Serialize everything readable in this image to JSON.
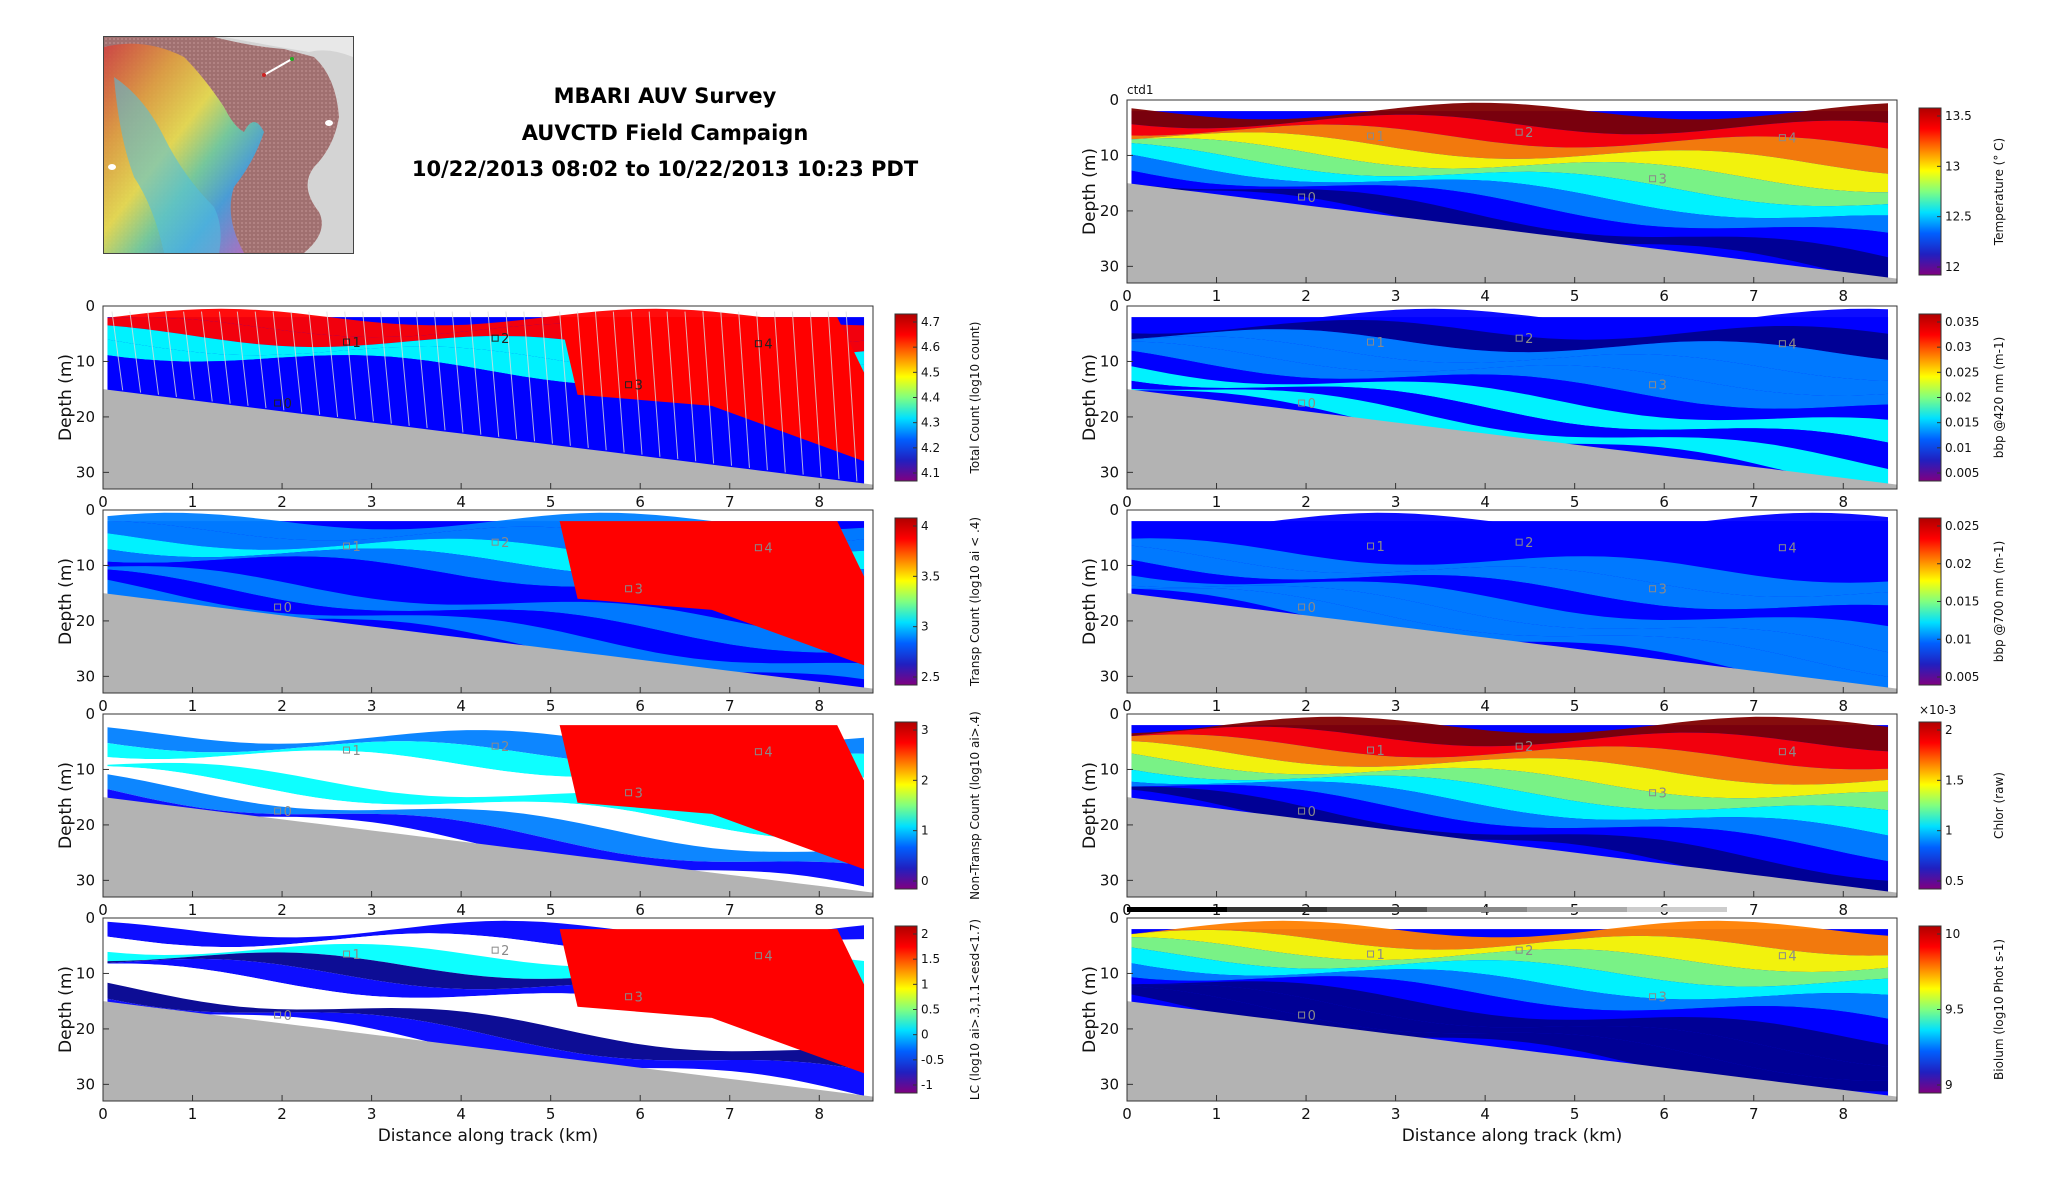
{
  "title": {
    "line1": "MBARI AUV Survey",
    "line2": "AUVCTD Field Campaign",
    "line3": "10/22/2013 08:02 to 10/22/2013 10:23 PDT"
  },
  "colors": {
    "terrain": "#b3b3b3",
    "marker_dark": "#222222",
    "marker_light": "#8a8a8a"
  },
  "markers": [
    {
      "label": "0",
      "x": 1.95,
      "y": 17.5
    },
    {
      "label": "1",
      "x": 2.72,
      "y": 6.5
    },
    {
      "label": "2",
      "x": 4.38,
      "y": 5.8
    },
    {
      "label": "3",
      "x": 5.87,
      "y": 14.2
    },
    {
      "label": "4",
      "x": 7.32,
      "y": 6.8
    }
  ],
  "ctd_tag": "ctd1",
  "chart_data": [
    {
      "type": "heatmap",
      "id": "total-count",
      "colorbar": "Total Count (log10 count)",
      "ticks": [
        "4.1",
        "4.2",
        "4.3",
        "4.4",
        "4.5",
        "4.6",
        "4.7"
      ],
      "ylabel": "Depth (m)",
      "xlabel": "",
      "xlim": [
        0,
        8.6
      ],
      "ylim": [
        33,
        0
      ],
      "xticks": [
        0,
        1,
        2,
        3,
        4,
        5,
        6,
        7,
        8
      ],
      "yticks": [
        0,
        10,
        20,
        30
      ],
      "markers_dark": true,
      "profiles": true
    },
    {
      "type": "heatmap",
      "id": "transp-count",
      "colorbar": "Transp Count (log10 ai < .4)",
      "ticks": [
        "2.5",
        "3",
        "3.5",
        "4"
      ],
      "ylabel": "Depth (m)",
      "xlabel": "",
      "xlim": [
        0,
        8.6
      ],
      "ylim": [
        33,
        0
      ],
      "xticks": [
        0,
        1,
        2,
        3,
        4,
        5,
        6,
        7,
        8
      ],
      "yticks": [
        0,
        10,
        20,
        30
      ]
    },
    {
      "type": "heatmap",
      "id": "nontransp-count",
      "colorbar": "Non-Transp Count (log10 ai>.4)",
      "ticks": [
        "0",
        "1",
        "2",
        "3"
      ],
      "ylabel": "Depth (m)",
      "xlabel": "",
      "xlim": [
        0,
        8.6
      ],
      "ylim": [
        33,
        0
      ],
      "xticks": [
        0,
        1,
        2,
        3,
        4,
        5,
        6,
        7,
        8
      ],
      "yticks": [
        0,
        10,
        20,
        30
      ]
    },
    {
      "type": "heatmap",
      "id": "lc",
      "colorbar": "LC (log10 ai>.3,1.1<esd<1.7)",
      "ticks": [
        "-1",
        "-0.5",
        "0",
        "0.5",
        "1",
        "1.5",
        "2"
      ],
      "ylabel": "Depth (m)",
      "xlabel": "Distance along track (km)",
      "xlim": [
        0,
        8.6
      ],
      "ylim": [
        33,
        0
      ],
      "xticks": [
        0,
        1,
        2,
        3,
        4,
        5,
        6,
        7,
        8
      ],
      "yticks": [
        0,
        10,
        20,
        30
      ]
    },
    {
      "type": "heatmap",
      "id": "temperature",
      "colorbar": "Temperature (° C)",
      "ticks": [
        "12",
        "12.5",
        "13",
        "13.5"
      ],
      "ylabel": "Depth (m)",
      "xlabel": "",
      "xlim": [
        0,
        8.6
      ],
      "ylim": [
        33,
        0
      ],
      "xticks": [
        0,
        1,
        2,
        3,
        4,
        5,
        6,
        7,
        8
      ],
      "yticks": [
        0,
        10,
        20,
        30
      ]
    },
    {
      "type": "heatmap",
      "id": "bbp420",
      "colorbar": "bbp @420 nm (m-1)",
      "ticks": [
        "0.005",
        "0.01",
        "0.015",
        "0.02",
        "0.025",
        "0.03",
        "0.035"
      ],
      "ylabel": "Depth (m)",
      "xlabel": "",
      "xlim": [
        0,
        8.6
      ],
      "ylim": [
        33,
        0
      ],
      "xticks": [
        0,
        1,
        2,
        3,
        4,
        5,
        6,
        7,
        8
      ],
      "yticks": [
        0,
        10,
        20,
        30
      ]
    },
    {
      "type": "heatmap",
      "id": "bbp700",
      "colorbar": "bbp @700 nm (m-1)",
      "ticks": [
        "0.005",
        "0.01",
        "0.015",
        "0.02",
        "0.025"
      ],
      "ylabel": "Depth (m)",
      "xlabel": "",
      "xlim": [
        0,
        8.6
      ],
      "ylim": [
        33,
        0
      ],
      "xticks": [
        0,
        1,
        2,
        3,
        4,
        5,
        6,
        7,
        8
      ],
      "yticks": [
        0,
        10,
        20,
        30
      ]
    },
    {
      "type": "heatmap",
      "id": "chlor",
      "colorbar": "Chlor (raw)",
      "ticks": [
        "0.5",
        "1",
        "1.5",
        "2"
      ],
      "exponent": "×10-3",
      "ylabel": "Depth (m)",
      "xlabel": "",
      "xlim": [
        0,
        8.6
      ],
      "ylim": [
        33,
        0
      ],
      "xticks": [
        0,
        1,
        2,
        3,
        4,
        5,
        6,
        7,
        8
      ],
      "yticks": [
        0,
        10,
        20,
        30
      ]
    },
    {
      "type": "heatmap",
      "id": "biolum",
      "colorbar": "Biolum (log10 Phot s-1)",
      "ticks": [
        "9",
        "9.5",
        "10"
      ],
      "ylabel": "Depth (m)",
      "xlabel": "Distance along track (km)",
      "xlim": [
        0,
        8.6
      ],
      "ylim": [
        33,
        0
      ],
      "xticks": [
        0,
        1,
        2,
        3,
        4,
        5,
        6,
        7,
        8
      ],
      "yticks": [
        0,
        10,
        20,
        30
      ]
    }
  ]
}
